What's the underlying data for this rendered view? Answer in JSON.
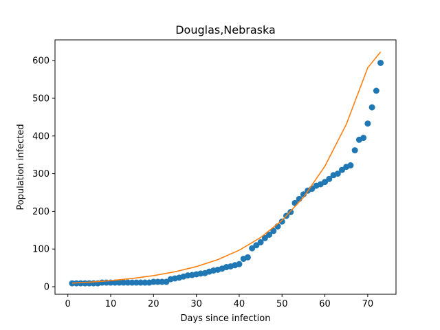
{
  "chart_data": {
    "type": "scatter",
    "title": "Douglas,Nebraska",
    "xlabel": "Days since infection",
    "ylabel": "Population infected",
    "xlim": [
      -3,
      76.6
    ],
    "ylim": [
      -20,
      655
    ],
    "xticks": [
      0,
      10,
      20,
      30,
      40,
      50,
      60,
      70
    ],
    "yticks": [
      0,
      100,
      200,
      300,
      400,
      500,
      600
    ],
    "grid": false,
    "colors": {
      "points": "#1f77b4",
      "fit": "#ff7f0e"
    },
    "series": [
      {
        "kind": "scatter",
        "x": [
          1,
          2,
          3,
          4,
          5,
          6,
          7,
          8,
          9,
          10,
          11,
          12,
          13,
          14,
          15,
          16,
          17,
          18,
          19,
          20,
          21,
          22,
          23,
          24,
          25,
          26,
          27,
          28,
          29,
          30,
          31,
          32,
          33,
          34,
          35,
          36,
          37,
          38,
          39,
          40,
          41,
          42,
          43,
          44,
          45,
          46,
          47,
          48,
          49,
          50,
          51,
          52,
          53,
          54,
          55,
          56,
          57,
          58,
          59,
          60,
          61,
          62,
          63,
          64,
          65,
          66,
          67,
          68,
          69,
          70,
          71,
          72,
          73
        ],
        "y": [
          9,
          9,
          9,
          9,
          9,
          9,
          9,
          11,
          11,
          11,
          11,
          11,
          11,
          11,
          11,
          11,
          11,
          11,
          11,
          13,
          13,
          13,
          13,
          20,
          22,
          24,
          27,
          30,
          31,
          33,
          35,
          36,
          40,
          43,
          45,
          48,
          52,
          54,
          57,
          60,
          74,
          78,
          102,
          110,
          118,
          129,
          138,
          148,
          160,
          173,
          188,
          198,
          222,
          233,
          245,
          255,
          260,
          268,
          272,
          278,
          286,
          296,
          300,
          310,
          318,
          322,
          362,
          390,
          395,
          433,
          476,
          520,
          594
        ]
      },
      {
        "kind": "line",
        "fit": "exponential",
        "x": [
          1,
          5,
          10,
          15,
          20,
          25,
          30,
          35,
          40,
          45,
          50,
          55,
          60,
          65,
          70,
          73
        ],
        "y": [
          9.5,
          12.1,
          16.2,
          21.8,
          29.4,
          39.6,
          53.3,
          71.9,
          96.9,
          130.6,
          176,
          237.2,
          319.7,
          430.9,
          580.9,
          623
        ]
      }
    ]
  }
}
